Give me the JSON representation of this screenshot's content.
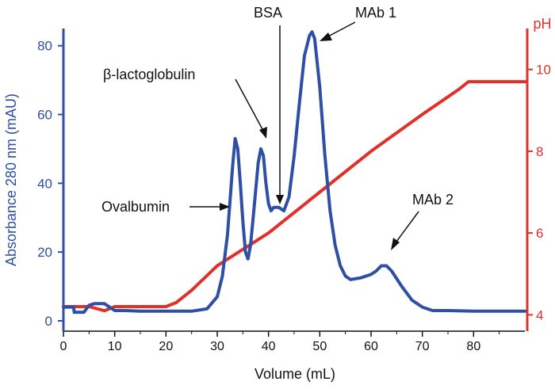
{
  "chart_data": {
    "type": "line",
    "xlabel": "Volume (mL)",
    "ylabel_left": "Absorbance 280 nm (mAU)",
    "ylabel_right": "pH",
    "xlim": [
      0,
      90
    ],
    "ylim_left": [
      -3,
      85
    ],
    "ylim_right": [
      3.6,
      11.0
    ],
    "x_ticks": [
      "0",
      "10",
      "20",
      "30",
      "40",
      "50",
      "60",
      "70",
      "80"
    ],
    "y_ticks_left": [
      "0",
      "20",
      "40",
      "60",
      "80"
    ],
    "y_ticks_right": [
      "4",
      "6",
      "8",
      "10"
    ],
    "colors": {
      "absorbance": "#2e4fa3",
      "ph": "#e0302a",
      "annotation": "#111111"
    },
    "series": [
      {
        "axis": "left",
        "x": [
          0,
          2,
          2.1,
          4,
          5,
          6,
          8,
          9,
          10,
          12,
          15,
          20,
          25,
          28,
          30,
          31,
          32,
          33,
          33.5,
          34,
          34.5,
          35,
          35.5,
          36,
          36.5,
          37,
          37.5,
          38,
          38.5,
          39,
          39.5,
          40,
          40.5,
          41,
          42,
          43,
          44,
          45,
          46,
          47,
          48,
          48.5,
          49,
          50,
          51,
          52,
          53,
          54,
          55,
          56,
          58,
          60,
          61,
          62,
          63,
          64,
          66,
          68,
          70,
          72,
          75,
          80,
          85,
          90
        ],
        "y": [
          4,
          4,
          2.5,
          2.5,
          4.5,
          5,
          5,
          4,
          3,
          3,
          2.8,
          2.8,
          2.8,
          3.5,
          7,
          13,
          25,
          45,
          53,
          50,
          40,
          29,
          20,
          18,
          22,
          30,
          38,
          46,
          50,
          48,
          40,
          34,
          32,
          33,
          33,
          32,
          36,
          48,
          63,
          77,
          83,
          84,
          82,
          68,
          48,
          32,
          22,
          16,
          13,
          12,
          12.5,
          13.5,
          14.5,
          16,
          16,
          14.5,
          10,
          6,
          4,
          3,
          3,
          2.8,
          2.8,
          2.8
        ]
      },
      {
        "axis": "right",
        "x": [
          0,
          5,
          8,
          10,
          12,
          20,
          22,
          25,
          30,
          40,
          50,
          60,
          70,
          77,
          79,
          81,
          90
        ],
        "y": [
          4.2,
          4.2,
          4.1,
          4.2,
          4.2,
          4.2,
          4.3,
          4.6,
          5.2,
          6.0,
          7.0,
          8.0,
          8.9,
          9.5,
          9.7,
          9.7,
          9.7
        ]
      }
    ],
    "annotations": [
      {
        "text": "BSA",
        "x": 43,
        "y": 34
      },
      {
        "text": "MAb 1",
        "x": 48.5,
        "y": 84
      },
      {
        "text": "β-lactoglobulin",
        "x": 38.5,
        "y": 50
      },
      {
        "text": "Ovalbumin",
        "x": 33,
        "y": 30
      },
      {
        "text": "MAb 2",
        "x": 62,
        "y": 16
      }
    ]
  }
}
